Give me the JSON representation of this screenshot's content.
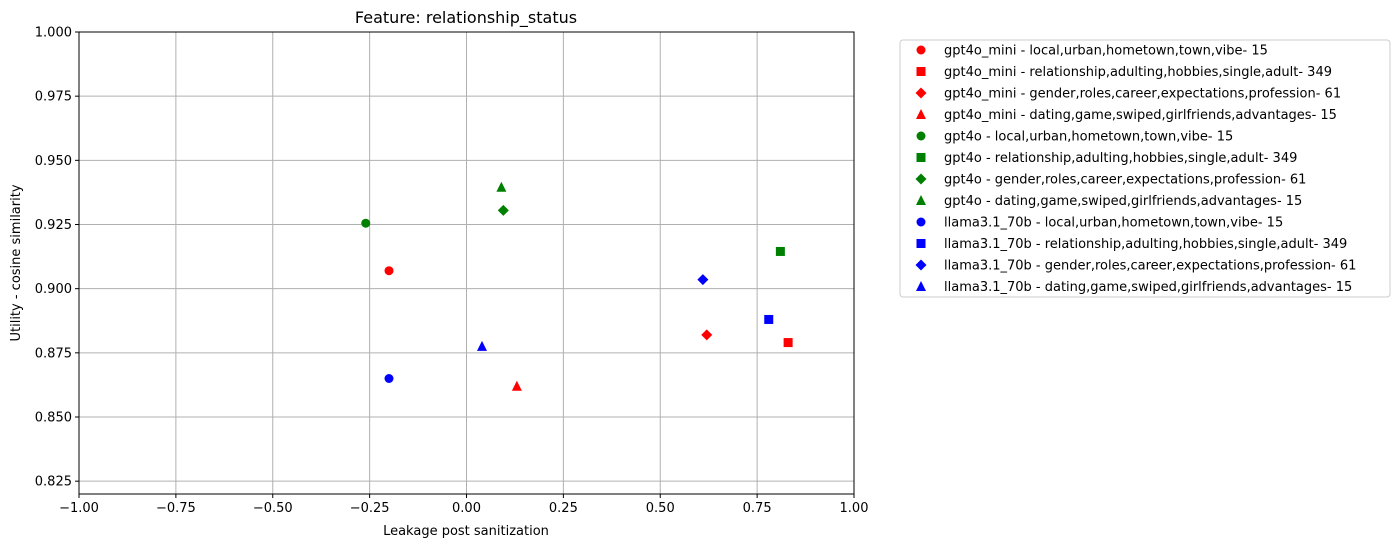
{
  "chart_data": {
    "type": "scatter",
    "title": "Feature: relationship_status",
    "xlabel": "Leakage post sanitization",
    "ylabel": "Utility - cosine similarity",
    "xlim": [
      -1.0,
      1.0
    ],
    "ylim": [
      0.82,
      1.0
    ],
    "xticks": [
      "−1.00",
      "−0.75",
      "−0.50",
      "−0.25",
      "0.00",
      "0.25",
      "0.50",
      "0.75",
      "1.00"
    ],
    "yticks": [
      "0.825",
      "0.850",
      "0.875",
      "0.900",
      "0.925",
      "0.950",
      "0.975",
      "1.000"
    ],
    "grid": true,
    "legend_position": "outside-top-right",
    "series": [
      {
        "name": "gpt4o_mini - local,urban,hometown,town,vibe- 15",
        "color": "#ff0000",
        "marker": "circle",
        "x": -0.2,
        "y": 0.907
      },
      {
        "name": "gpt4o_mini - relationship,adulting,hobbies,single,adult- 349",
        "color": "#ff0000",
        "marker": "square",
        "x": 0.83,
        "y": 0.879
      },
      {
        "name": "gpt4o_mini - gender,roles,career,expectations,profession- 61",
        "color": "#ff0000",
        "marker": "diamond",
        "x": 0.62,
        "y": 0.882
      },
      {
        "name": "gpt4o_mini - dating,game,swiped,girlfriends,advantages- 15",
        "color": "#ff0000",
        "marker": "triangle",
        "x": 0.13,
        "y": 0.862
      },
      {
        "name": "gpt4o - local,urban,hometown,town,vibe- 15",
        "color": "#008000",
        "marker": "circle",
        "x": -0.26,
        "y": 0.9255
      },
      {
        "name": "gpt4o - relationship,adulting,hobbies,single,adult- 349",
        "color": "#008000",
        "marker": "square",
        "x": 0.81,
        "y": 0.9145
      },
      {
        "name": "gpt4o - gender,roles,career,expectations,profession- 61",
        "color": "#008000",
        "marker": "diamond",
        "x": 0.095,
        "y": 0.9305
      },
      {
        "name": "gpt4o - dating,game,swiped,girlfriends,advantages- 15",
        "color": "#008000",
        "marker": "triangle",
        "x": 0.09,
        "y": 0.9395
      },
      {
        "name": "llama3.1_70b - local,urban,hometown,town,vibe- 15",
        "color": "#0000ff",
        "marker": "circle",
        "x": -0.2,
        "y": 0.865
      },
      {
        "name": "llama3.1_70b - relationship,adulting,hobbies,single,adult- 349",
        "color": "#0000ff",
        "marker": "square",
        "x": 0.78,
        "y": 0.888
      },
      {
        "name": "llama3.1_70b - gender,roles,career,expectations,profession- 61",
        "color": "#0000ff",
        "marker": "diamond",
        "x": 0.61,
        "y": 0.9035
      },
      {
        "name": "llama3.1_70b - dating,game,swiped,girlfriends,advantages- 15",
        "color": "#0000ff",
        "marker": "triangle",
        "x": 0.04,
        "y": 0.8775
      }
    ]
  }
}
